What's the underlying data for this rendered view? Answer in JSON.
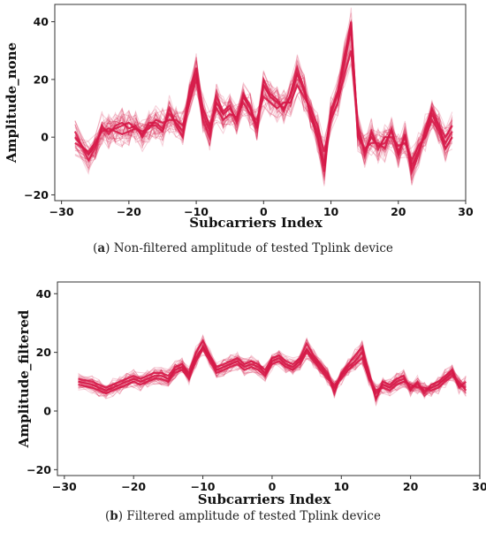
{
  "chart_data": [
    {
      "type": "line",
      "xlabel": "Subcarriers Index",
      "ylabel": "Amplitude_none",
      "xlim": [
        -31,
        30
      ],
      "ylim": [
        -22,
        46
      ],
      "xticks": [
        -30,
        -20,
        -10,
        0,
        10,
        20,
        30
      ],
      "yticks": [
        -20,
        0,
        20,
        40
      ],
      "line_color": "#d81b4a",
      "x": [
        -28,
        -26,
        -25,
        -24,
        -23,
        -22,
        -21,
        -20,
        -19,
        -18,
        -17,
        -16,
        -15,
        -14,
        -13,
        -12,
        -11,
        -10,
        -9,
        -8,
        -7,
        -6,
        -5,
        -4,
        -3,
        -2,
        -1,
        0,
        1,
        2,
        3,
        4,
        5,
        6,
        7,
        8,
        9,
        10,
        11,
        12,
        13,
        14,
        15,
        16,
        17,
        18,
        19,
        20,
        21,
        22,
        23,
        24,
        25,
        26,
        27,
        28
      ],
      "series": [
        {
          "values": [
            0,
            -6,
            -3,
            3,
            2,
            3,
            4,
            5,
            3,
            1,
            5,
            5,
            3,
            8,
            5,
            2,
            16,
            24,
            8,
            2,
            12,
            8,
            10,
            6,
            14,
            10,
            4,
            18,
            14,
            12,
            10,
            14,
            22,
            16,
            8,
            2,
            -10,
            8,
            15,
            26,
            38,
            2,
            -5,
            0,
            -3,
            -2,
            2,
            -5,
            0,
            -10,
            -5,
            2,
            8,
            3,
            -2,
            2
          ]
        },
        {
          "values": [
            -2,
            -5,
            -2,
            2,
            3,
            2,
            1,
            2,
            3,
            2,
            3,
            6,
            5,
            6,
            6,
            4,
            12,
            20,
            10,
            4,
            10,
            6,
            8,
            7,
            12,
            8,
            6,
            14,
            12,
            10,
            12,
            12,
            18,
            14,
            10,
            4,
            -5,
            6,
            12,
            22,
            30,
            4,
            -6,
            2,
            -4,
            0,
            0,
            -3,
            -2,
            -8,
            -3,
            0,
            6,
            2,
            -4,
            0
          ]
        },
        {
          "values": [
            2,
            -8,
            -4,
            4,
            1,
            4,
            5,
            3,
            4,
            0,
            4,
            4,
            2,
            10,
            4,
            0,
            14,
            22,
            6,
            0,
            14,
            9,
            11,
            5,
            15,
            11,
            3,
            20,
            15,
            13,
            9,
            15,
            24,
            17,
            7,
            0,
            -12,
            9,
            16,
            28,
            40,
            0,
            -4,
            -2,
            -2,
            -4,
            3,
            -6,
            1,
            -12,
            -6,
            3,
            10,
            4,
            0,
            4
          ]
        }
      ]
    },
    {
      "type": "line",
      "xlabel": "Subcarriers Index",
      "ylabel": "Amplitude_filtered",
      "xlim": [
        -31,
        30
      ],
      "ylim": [
        -22,
        44
      ],
      "xticks": [
        -30,
        -20,
        -10,
        0,
        10,
        20,
        30
      ],
      "yticks": [
        -20,
        0,
        20,
        40
      ],
      "line_color": "#d81b4a",
      "x": [
        -28,
        -26,
        -25,
        -24,
        -23,
        -22,
        -21,
        -20,
        -19,
        -18,
        -17,
        -16,
        -15,
        -14,
        -13,
        -12,
        -11,
        -10,
        -9,
        -8,
        -7,
        -6,
        -5,
        -4,
        -3,
        -2,
        -1,
        0,
        1,
        2,
        3,
        4,
        5,
        6,
        7,
        8,
        9,
        10,
        11,
        12,
        13,
        14,
        15,
        16,
        17,
        18,
        19,
        20,
        21,
        22,
        23,
        24,
        25,
        26,
        27,
        28
      ],
      "series": [
        {
          "values": [
            10,
            9,
            8,
            7,
            8,
            9,
            10,
            11,
            10,
            11,
            12,
            12,
            11,
            14,
            15,
            12,
            18,
            22,
            18,
            14,
            15,
            16,
            17,
            15,
            16,
            15,
            13,
            17,
            18,
            16,
            15,
            17,
            21,
            18,
            15,
            12,
            8,
            12,
            15,
            17,
            20,
            12,
            6,
            9,
            8,
            10,
            11,
            8,
            9,
            7,
            8,
            9,
            11,
            13,
            9,
            8
          ]
        },
        {
          "values": [
            11,
            10,
            9,
            8,
            9,
            10,
            11,
            12,
            11,
            12,
            13,
            13,
            12,
            15,
            16,
            13,
            20,
            24,
            19,
            15,
            16,
            17,
            18,
            16,
            17,
            16,
            14,
            18,
            19,
            17,
            16,
            18,
            23,
            19,
            16,
            13,
            6,
            13,
            16,
            19,
            22,
            13,
            4,
            10,
            9,
            11,
            12,
            7,
            10,
            6,
            9,
            10,
            12,
            14,
            8,
            10
          ]
        },
        {
          "values": [
            9,
            8,
            7,
            6,
            7,
            8,
            9,
            10,
            9,
            10,
            11,
            11,
            10,
            13,
            14,
            11,
            17,
            21,
            17,
            13,
            14,
            15,
            16,
            14,
            15,
            14,
            12,
            16,
            17,
            15,
            14,
            16,
            20,
            17,
            14,
            11,
            9,
            11,
            14,
            16,
            18,
            11,
            7,
            8,
            7,
            9,
            10,
            9,
            8,
            8,
            7,
            8,
            10,
            12,
            10,
            7
          ]
        }
      ]
    }
  ],
  "captions": [
    {
      "label": "a",
      "text": " Non-filtered amplitude of tested Tplink device"
    },
    {
      "label": "b",
      "text": " Filtered amplitude of tested Tplink device"
    }
  ]
}
